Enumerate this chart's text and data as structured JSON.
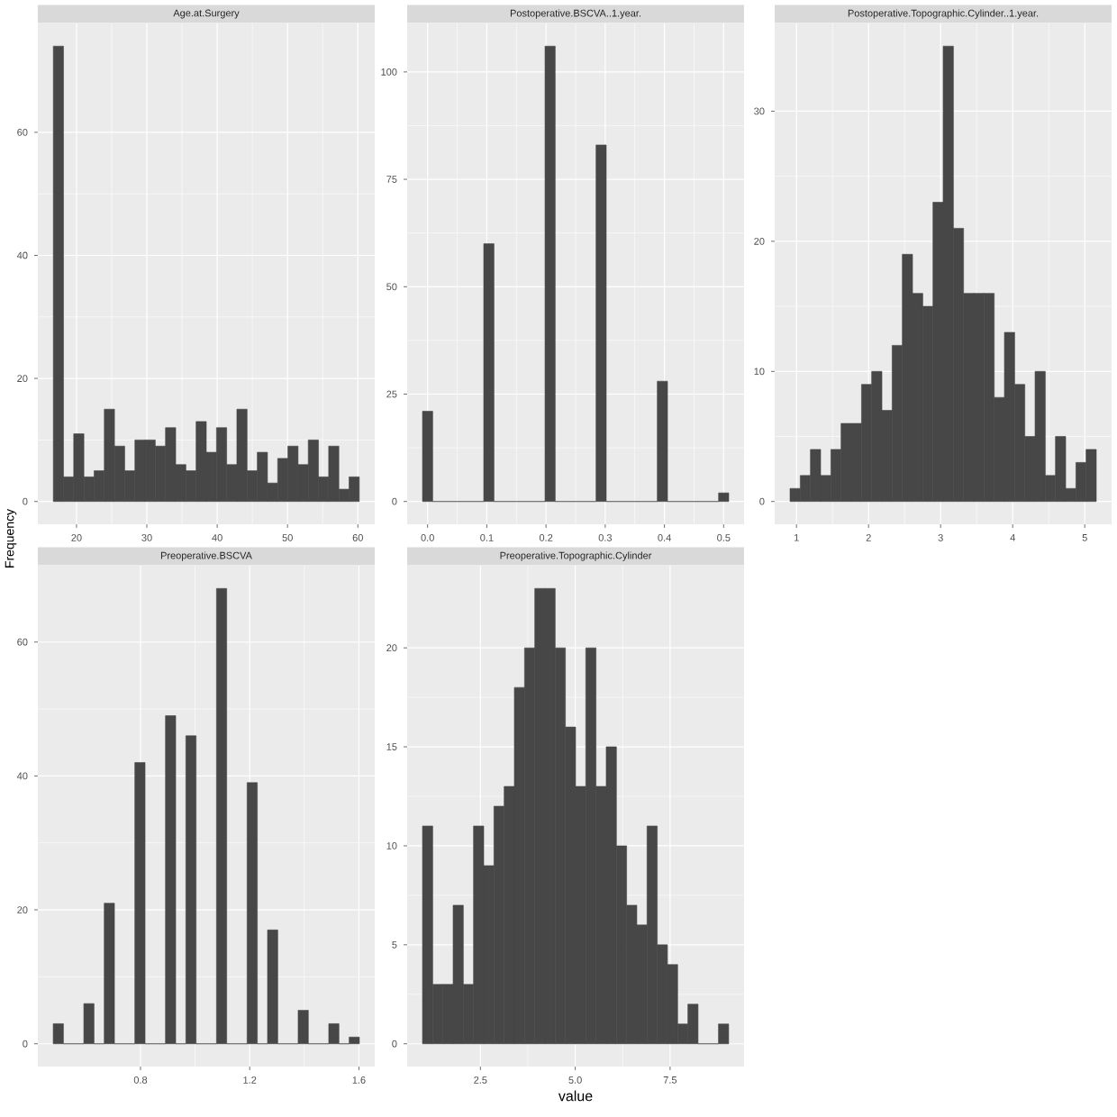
{
  "chart_data": [
    {
      "type": "histogram",
      "title": "Age.at.Surgery",
      "ylabel": "Frequency",
      "color": "#474747",
      "grid": true,
      "bins": [
        16.7,
        18.15,
        19.6,
        21.05,
        22.5,
        23.95,
        25.4,
        26.85,
        28.3,
        29.75,
        31.2,
        32.65,
        34.1,
        35.55,
        37,
        38.45,
        39.9,
        41.35,
        42.8,
        44.25,
        45.7,
        47.15,
        48.6,
        50.05,
        51.5,
        52.95,
        54.4,
        55.85,
        57.3,
        58.75,
        60.2
      ],
      "values": [
        74,
        4,
        11,
        4,
        5,
        15,
        9,
        5,
        10,
        10,
        9,
        12,
        6,
        5,
        13,
        8,
        12,
        6,
        15,
        5,
        8,
        3,
        7,
        9,
        6,
        10,
        4,
        9,
        2,
        4
      ],
      "xlim": [
        14.5,
        62.4
      ],
      "ylim": [
        -3.7,
        77.7
      ],
      "xticks": [
        20,
        30,
        40,
        50,
        60
      ],
      "yticks": [
        0,
        20,
        40,
        60
      ]
    },
    {
      "type": "histogram",
      "title": "Postoperative.BSCVA..1.year.",
      "color": "#474747",
      "grid": true,
      "bins": [
        -0.0086,
        0.0086,
        0.0259,
        0.0431,
        0.0603,
        0.0776,
        0.0948,
        0.1121,
        0.1293,
        0.1466,
        0.1638,
        0.181,
        0.1983,
        0.2155,
        0.2328,
        0.25,
        0.2672,
        0.2845,
        0.3017,
        0.319,
        0.3362,
        0.3534,
        0.3707,
        0.3879,
        0.4052,
        0.4224,
        0.4397,
        0.4569,
        0.4741,
        0.4914,
        0.5086
      ],
      "values": [
        21,
        0,
        0,
        0,
        0,
        0,
        60,
        0,
        0,
        0,
        0,
        0,
        106,
        0,
        0,
        0,
        0,
        83,
        0,
        0,
        0,
        0,
        0,
        28,
        0,
        0,
        0,
        0,
        0,
        2
      ],
      "xlim": [
        -0.0345,
        0.5345
      ],
      "ylim": [
        -5.3,
        111.3
      ],
      "xticks": [
        {
          "value": 0,
          "label": "0.0"
        },
        0.1,
        0.2,
        0.3,
        0.4,
        0.5
      ],
      "yticks": [
        0,
        25,
        50,
        75,
        100
      ]
    },
    {
      "type": "histogram",
      "title": "Postoperative.Topographic.Cylinder..1.year.",
      "color": "#474747",
      "grid": true,
      "bins": [
        0.91,
        1.052,
        1.193,
        1.335,
        1.477,
        1.618,
        1.76,
        1.902,
        2.043,
        2.185,
        2.327,
        2.468,
        2.61,
        2.752,
        2.893,
        3.035,
        3.177,
        3.318,
        3.46,
        3.602,
        3.743,
        3.885,
        4.027,
        4.168,
        4.31,
        4.452,
        4.593,
        4.735,
        4.877,
        5.018,
        5.16
      ],
      "values": [
        1,
        2,
        4,
        2,
        4,
        6,
        6,
        9,
        10,
        7,
        12,
        19,
        16,
        15,
        23,
        35,
        21,
        16,
        16,
        16,
        8,
        13,
        9,
        5,
        10,
        2,
        5,
        1,
        3,
        4
      ],
      "xlim": [
        0.6975,
        5.3725
      ],
      "ylim": [
        -1.75,
        36.75
      ],
      "xticks": [
        1,
        2,
        3,
        4,
        5
      ],
      "yticks": [
        0,
        10,
        20,
        30
      ]
    },
    {
      "type": "histogram",
      "title": "Preoperative.BSCVA",
      "color": "#474747",
      "grid": true,
      "bins": [
        0.4803,
        0.5177,
        0.5551,
        0.5924,
        0.6298,
        0.6672,
        0.7046,
        0.742,
        0.7793,
        0.8167,
        0.8541,
        0.8915,
        0.9289,
        0.9662,
        1.0036,
        1.041,
        1.0784,
        1.1158,
        1.1531,
        1.1905,
        1.2279,
        1.2653,
        1.3027,
        1.34,
        1.3774,
        1.4148,
        1.4522,
        1.4896,
        1.5269,
        1.5643,
        1.6017
      ],
      "values": [
        3,
        0,
        0,
        6,
        0,
        21,
        0,
        0,
        42,
        0,
        0,
        49,
        0,
        46,
        0,
        0,
        68,
        0,
        0,
        39,
        0,
        17,
        0,
        0,
        5,
        0,
        0,
        3,
        0,
        1
      ],
      "xlim": [
        0.424,
        1.658
      ],
      "ylim": [
        -3.4,
        71.4
      ],
      "xticks": [
        0.8,
        1.2,
        1.6
      ],
      "yticks": [
        0,
        20,
        40,
        60
      ]
    },
    {
      "type": "histogram",
      "title": "Preoperative.Topographic.Cylinder",
      "xlabel": "value",
      "color": "#474747",
      "grid": true,
      "bins": [
        0.974,
        1.243,
        1.512,
        1.781,
        2.05,
        2.319,
        2.588,
        2.857,
        3.126,
        3.395,
        3.664,
        3.933,
        4.202,
        4.471,
        4.74,
        5.009,
        5.278,
        5.547,
        5.816,
        6.085,
        6.354,
        6.623,
        6.892,
        7.161,
        7.43,
        7.699,
        7.968,
        8.237,
        8.506,
        8.775,
        9.044
      ],
      "values": [
        11,
        3,
        3,
        7,
        3,
        11,
        9,
        12,
        13,
        18,
        20,
        23,
        23,
        20,
        16,
        13,
        20,
        13,
        15,
        10,
        7,
        6,
        11,
        5,
        4,
        1,
        2,
        0,
        0,
        1
      ],
      "xlim": [
        0.57,
        9.45
      ],
      "ylim": [
        -1.15,
        24.15
      ],
      "xticks": [
        2.5,
        {
          "value": 5,
          "label": "5.0"
        },
        7.5
      ],
      "yticks": [
        0,
        5,
        10,
        15,
        20
      ]
    }
  ]
}
